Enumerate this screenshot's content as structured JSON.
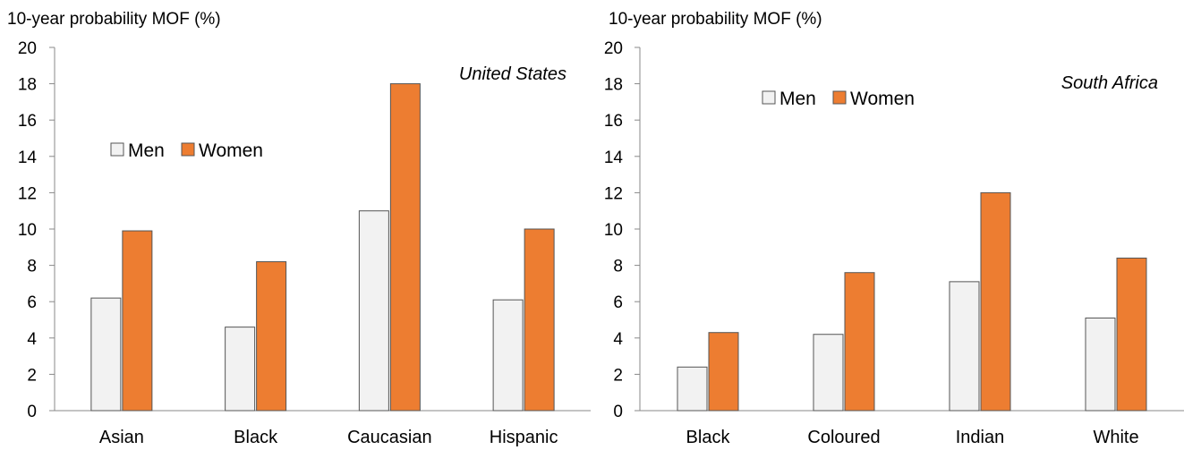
{
  "chart_data": [
    {
      "type": "bar",
      "ylabel": "10-year probability MOF (%)",
      "annotation": "United States",
      "categories": [
        "Asian",
        "Black",
        "Caucasian",
        "Hispanic"
      ],
      "series": [
        {
          "name": "Men",
          "values": [
            6.2,
            4.6,
            11.0,
            6.1
          ],
          "color": "#f2f2f2"
        },
        {
          "name": "Women",
          "values": [
            9.9,
            8.2,
            18.0,
            10.0
          ],
          "color": "#ed7d31"
        }
      ],
      "ylim": [
        0,
        20
      ],
      "yticks": [
        0,
        2,
        4,
        6,
        8,
        10,
        12,
        14,
        16,
        18,
        20
      ],
      "grid": false,
      "legend_position": "middle-left"
    },
    {
      "type": "bar",
      "ylabel": "10-year probability MOF (%)",
      "annotation": "South Africa",
      "categories": [
        "Black",
        "Coloured",
        "Indian",
        "White"
      ],
      "series": [
        {
          "name": "Men",
          "values": [
            2.4,
            4.2,
            7.1,
            5.1
          ],
          "color": "#f2f2f2"
        },
        {
          "name": "Women",
          "values": [
            4.3,
            7.6,
            12.0,
            8.4
          ],
          "color": "#ed7d31"
        }
      ],
      "ylim": [
        0,
        20
      ],
      "yticks": [
        0,
        2,
        4,
        6,
        8,
        10,
        12,
        14,
        16,
        18,
        20
      ],
      "grid": false,
      "legend_position": "top-left"
    }
  ]
}
